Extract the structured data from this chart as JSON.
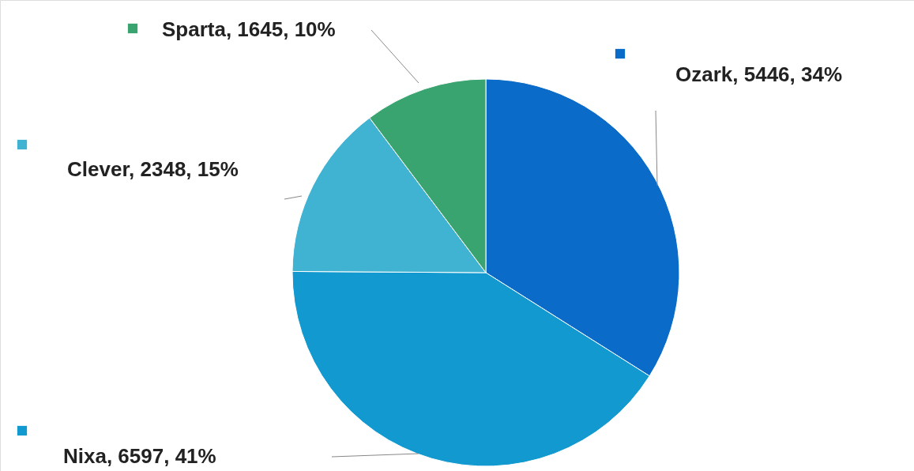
{
  "chart_data": {
    "type": "pie",
    "categories": [
      "Ozark",
      "Nixa",
      "Clever",
      "Sparta"
    ],
    "values": [
      5446,
      6597,
      2348,
      1645
    ],
    "colors": [
      "#0a6cc8",
      "#1199d0",
      "#3fb3d1",
      "#3aa470"
    ],
    "value_labels": [
      "5446, 34%",
      "6597, 41%",
      "2348, 15%",
      "1645, 10%"
    ],
    "legend": "left"
  }
}
